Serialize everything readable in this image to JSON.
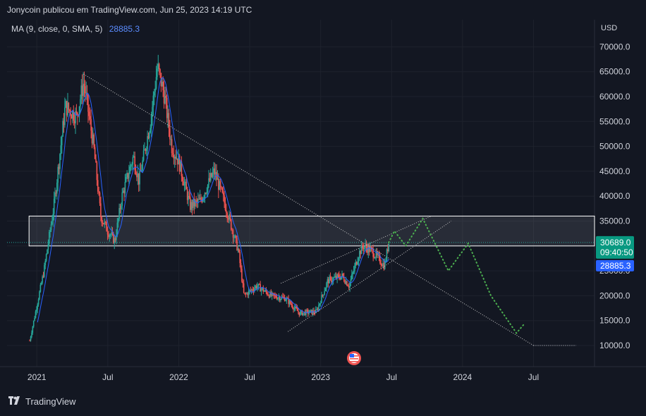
{
  "header": {
    "publish_text": "Jonycoin publicou em TradingView.com, Jun 25, 2023 14:19 UTC"
  },
  "indicator": {
    "label": "MA (9, close, 0, SMA, 5)",
    "value": "28885.3"
  },
  "price_axis": {
    "currency": "USD",
    "current_price": "30689.0",
    "countdown": "09:40:50",
    "ma_value": "28885.3"
  },
  "footer": {
    "brand": "TradingView"
  },
  "colors": {
    "background": "#131722",
    "up": "#26a69a",
    "down": "#ef5350",
    "ma": "#2962ff",
    "price_tag": "#089981",
    "ma_tag": "#2962ff",
    "projection": "#4caf50"
  },
  "chart_data": {
    "type": "candlestick",
    "y_ticks": [
      10000,
      15000,
      20000,
      25000,
      30000,
      35000,
      40000,
      45000,
      50000,
      55000,
      60000,
      65000,
      70000
    ],
    "y_tick_labels": [
      "10000.0",
      "15000.0",
      "20000.0",
      "25000.0",
      "30000.0",
      "35000.0",
      "40000.0",
      "45000.0",
      "50000.0",
      "55000.0",
      "60000.0",
      "65000.0",
      "70000.0"
    ],
    "x_ticks": [
      "2021",
      "Jul",
      "2022",
      "Jul",
      "2023",
      "Jul",
      "2024",
      "Jul"
    ],
    "ylim": [
      8000,
      72000
    ],
    "path_anchors": [
      {
        "t": 2020.95,
        "p": 11000
      },
      {
        "t": 2021.05,
        "p": 25000
      },
      {
        "t": 2021.12,
        "p": 38000
      },
      {
        "t": 2021.2,
        "p": 58000
      },
      {
        "t": 2021.28,
        "p": 56000
      },
      {
        "t": 2021.33,
        "p": 63000
      },
      {
        "t": 2021.4,
        "p": 50000
      },
      {
        "t": 2021.45,
        "p": 36000
      },
      {
        "t": 2021.5,
        "p": 33000
      },
      {
        "t": 2021.55,
        "p": 31000
      },
      {
        "t": 2021.6,
        "p": 40000
      },
      {
        "t": 2021.68,
        "p": 48000
      },
      {
        "t": 2021.72,
        "p": 43000
      },
      {
        "t": 2021.8,
        "p": 55000
      },
      {
        "t": 2021.85,
        "p": 66000
      },
      {
        "t": 2021.9,
        "p": 60000
      },
      {
        "t": 2021.95,
        "p": 50000
      },
      {
        "t": 2022.0,
        "p": 47000
      },
      {
        "t": 2022.08,
        "p": 38000
      },
      {
        "t": 2022.15,
        "p": 39000
      },
      {
        "t": 2022.25,
        "p": 45000
      },
      {
        "t": 2022.33,
        "p": 38000
      },
      {
        "t": 2022.42,
        "p": 29000
      },
      {
        "t": 2022.46,
        "p": 20000
      },
      {
        "t": 2022.55,
        "p": 22000
      },
      {
        "t": 2022.65,
        "p": 20000
      },
      {
        "t": 2022.75,
        "p": 19500
      },
      {
        "t": 2022.85,
        "p": 16500
      },
      {
        "t": 2022.97,
        "p": 16800
      },
      {
        "t": 2023.05,
        "p": 23000
      },
      {
        "t": 2023.15,
        "p": 24000
      },
      {
        "t": 2023.2,
        "p": 22000
      },
      {
        "t": 2023.27,
        "p": 28500
      },
      {
        "t": 2023.3,
        "p": 30000
      },
      {
        "t": 2023.36,
        "p": 29000
      },
      {
        "t": 2023.42,
        "p": 27000
      },
      {
        "t": 2023.45,
        "p": 26000
      },
      {
        "t": 2023.48,
        "p": 30700
      }
    ],
    "support_zone": {
      "from": 2020.95,
      "to": 2024.8,
      "low": 30000,
      "high": 36000
    },
    "current_price_line": 30689,
    "trendlines": [
      {
        "x1": 2021.33,
        "y1": 64500,
        "x2": 2024.5,
        "y2": 10000
      },
      {
        "x1": 2022.77,
        "y1": 12800,
        "x2": 2023.92,
        "y2": 35000
      },
      {
        "x1": 2022.72,
        "y1": 22500,
        "x2": 2023.78,
        "y2": 36000
      }
    ],
    "target_line": {
      "from": 2024.5,
      "to": 2024.8,
      "value": 10000
    },
    "projection": [
      {
        "t": 2023.48,
        "p": 30700
      },
      {
        "t": 2023.52,
        "p": 33000
      },
      {
        "t": 2023.6,
        "p": 30000
      },
      {
        "t": 2023.72,
        "p": 35500
      },
      {
        "t": 2023.9,
        "p": 25000
      },
      {
        "t": 2024.04,
        "p": 30500
      },
      {
        "t": 2024.2,
        "p": 20000
      },
      {
        "t": 2024.38,
        "p": 12500
      },
      {
        "t": 2024.44,
        "p": 14500
      }
    ]
  }
}
